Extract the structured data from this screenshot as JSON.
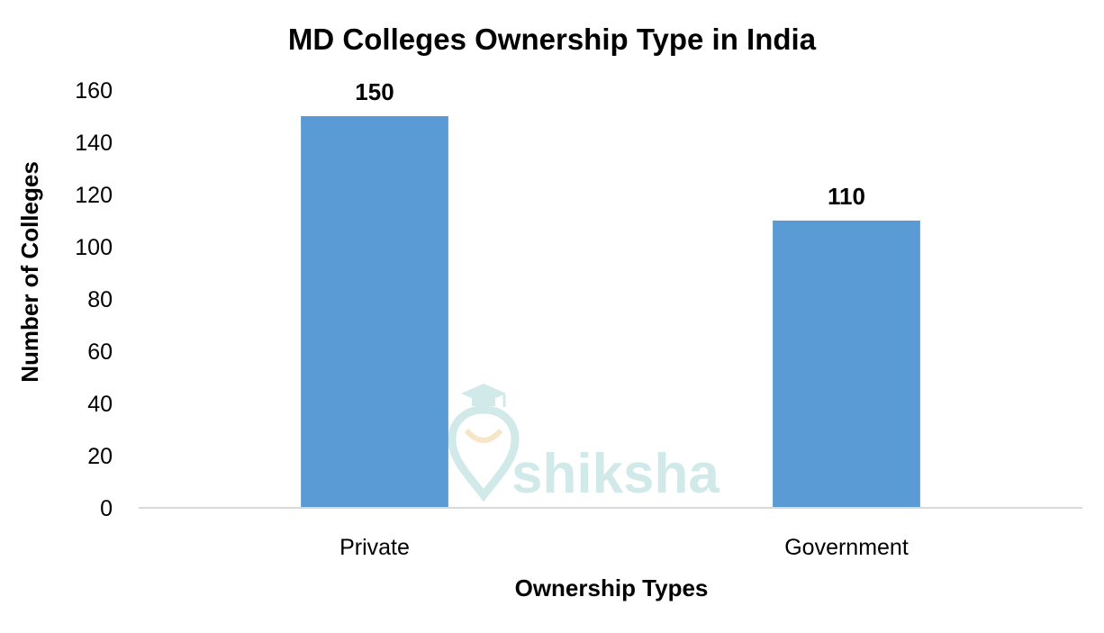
{
  "chart_data": {
    "type": "bar",
    "title": "MD Colleges Ownership Type in India",
    "xlabel": "Ownership Types",
    "ylabel": "Number of Colleges",
    "categories": [
      "Private",
      "Government"
    ],
    "values": [
      150,
      110
    ],
    "data_labels": [
      "150",
      "110"
    ],
    "ylim": [
      0,
      160
    ],
    "yticks": [
      0,
      20,
      40,
      60,
      80,
      100,
      120,
      140,
      160
    ],
    "grid": false,
    "legend": "none",
    "bar_color": "#5b9bd5",
    "axis_color": "#d9d9d9"
  },
  "watermark": {
    "text": "shiksha",
    "color": "#c6e4e4"
  }
}
